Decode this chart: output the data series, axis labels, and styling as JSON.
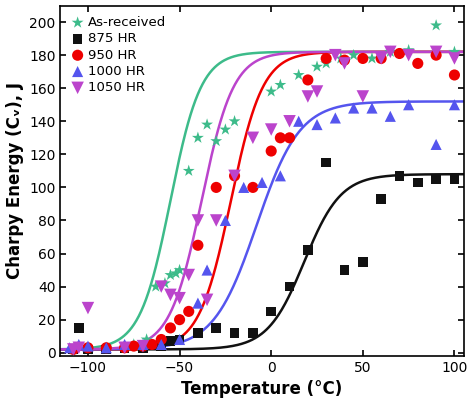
{
  "xlabel": "Temperature (°C)",
  "ylabel": "Charpy Energy (Cᵥ), J",
  "xlim": [
    -115,
    105
  ],
  "ylim": [
    -2,
    210
  ],
  "xticks": [
    -100,
    -50,
    0,
    50,
    100
  ],
  "yticks": [
    0,
    20,
    40,
    60,
    80,
    100,
    120,
    140,
    160,
    180,
    200
  ],
  "series": [
    {
      "label": "As-received",
      "color": "#3dbb8a",
      "marker": "*",
      "markersize": 9,
      "scatter_x": [
        -108,
        -100,
        -90,
        -75,
        -68,
        -63,
        -58,
        -55,
        -52,
        -50,
        -45,
        -40,
        -35,
        -30,
        -25,
        -20,
        0,
        5,
        15,
        25,
        30,
        38,
        45,
        55,
        65,
        75,
        90,
        100
      ],
      "scatter_y": [
        2,
        2,
        3,
        5,
        8,
        40,
        42,
        47,
        48,
        50,
        110,
        130,
        138,
        128,
        135,
        140,
        158,
        162,
        168,
        173,
        175,
        178,
        180,
        178,
        182,
        183,
        198,
        182
      ],
      "sigmoid_T0": -55,
      "sigmoid_k": 0.12,
      "sigmoid_low": 2,
      "sigmoid_high": 182
    },
    {
      "label": "875 HR",
      "color": "#111111",
      "marker": "s",
      "markersize": 7,
      "scatter_x": [
        -108,
        -105,
        -100,
        -90,
        -80,
        -70,
        -60,
        -55,
        -50,
        -40,
        -30,
        -20,
        -10,
        0,
        10,
        20,
        30,
        40,
        50,
        60,
        70,
        80,
        90,
        100
      ],
      "scatter_y": [
        2,
        15,
        2,
        2,
        3,
        3,
        4,
        7,
        8,
        12,
        15,
        12,
        12,
        25,
        40,
        62,
        115,
        50,
        55,
        93,
        107,
        103,
        105,
        105
      ],
      "sigmoid_T0": 18,
      "sigmoid_k": 0.1,
      "sigmoid_low": 2,
      "sigmoid_high": 108
    },
    {
      "label": "950 HR",
      "color": "#ee0000",
      "marker": "o",
      "markersize": 8,
      "scatter_x": [
        -108,
        -100,
        -90,
        -80,
        -75,
        -70,
        -65,
        -60,
        -55,
        -50,
        -45,
        -40,
        -30,
        -20,
        -10,
        0,
        5,
        10,
        20,
        30,
        40,
        50,
        60,
        70,
        80,
        90,
        100
      ],
      "scatter_y": [
        2,
        3,
        3,
        3,
        4,
        4,
        5,
        8,
        15,
        20,
        25,
        65,
        100,
        107,
        100,
        122,
        130,
        130,
        165,
        178,
        177,
        178,
        178,
        181,
        175,
        180,
        168
      ],
      "sigmoid_T0": -22,
      "sigmoid_k": 0.115,
      "sigmoid_low": 2,
      "sigmoid_high": 182
    },
    {
      "label": "1000 HR",
      "color": "#5555ee",
      "marker": "^",
      "markersize": 8,
      "scatter_x": [
        -110,
        -105,
        -100,
        -90,
        -80,
        -70,
        -60,
        -50,
        -40,
        -35,
        -25,
        -15,
        -5,
        5,
        15,
        25,
        35,
        45,
        55,
        65,
        75,
        90,
        100
      ],
      "scatter_y": [
        3,
        5,
        4,
        3,
        5,
        5,
        5,
        8,
        30,
        50,
        80,
        100,
        103,
        107,
        140,
        138,
        142,
        148,
        148,
        143,
        150,
        126,
        150
      ],
      "sigmoid_T0": -8,
      "sigmoid_k": 0.085,
      "sigmoid_low": 2,
      "sigmoid_high": 152
    },
    {
      "label": "1050 HR",
      "color": "#bb44cc",
      "marker": "v",
      "markersize": 9,
      "scatter_x": [
        -108,
        -105,
        -100,
        -80,
        -70,
        -60,
        -55,
        -50,
        -45,
        -40,
        -35,
        -30,
        -20,
        -10,
        0,
        10,
        20,
        25,
        35,
        40,
        50,
        60,
        65,
        75,
        90,
        100
      ],
      "scatter_y": [
        2,
        3,
        27,
        3,
        4,
        40,
        35,
        33,
        47,
        80,
        32,
        80,
        107,
        130,
        135,
        140,
        155,
        158,
        180,
        175,
        155,
        178,
        182,
        180,
        182,
        178
      ],
      "sigmoid_T0": -38,
      "sigmoid_k": 0.115,
      "sigmoid_low": 2,
      "sigmoid_high": 182
    }
  ],
  "background_color": "#ffffff",
  "legend_fontsize": 9.5,
  "axis_label_fontsize": 12,
  "tick_fontsize": 10,
  "line_width": 1.8
}
